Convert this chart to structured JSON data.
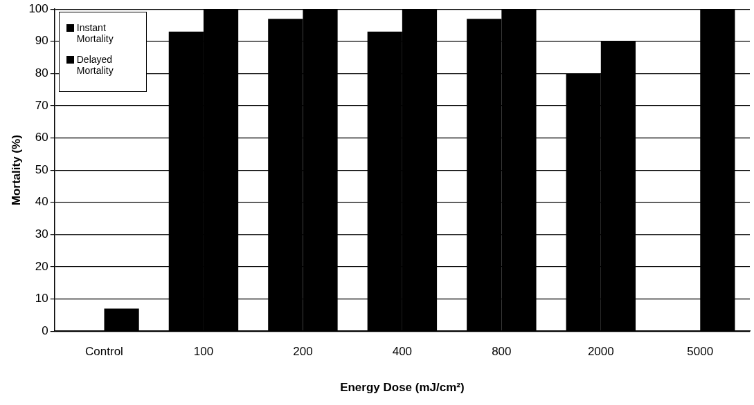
{
  "chart_data": {
    "type": "bar",
    "xlabel": "Energy Dose (mJ/cm²)",
    "ylabel": "Mortality (%)",
    "categories": [
      "Control",
      "100",
      "200",
      "400",
      "800",
      "2000",
      "5000"
    ],
    "series": [
      {
        "name": "Instant Mortality",
        "color": "#000000",
        "values": [
          null,
          93,
          97,
          93,
          97,
          80,
          null
        ]
      },
      {
        "name": "Delayed Mortality",
        "color": "#000000",
        "values": [
          7,
          100,
          100,
          100,
          100,
          90,
          100
        ]
      }
    ],
    "ylim": [
      0,
      100
    ],
    "yticks": [
      0,
      10,
      20,
      30,
      40,
      50,
      60,
      70,
      80,
      90,
      100
    ],
    "grid": "y",
    "legend": "top left"
  }
}
